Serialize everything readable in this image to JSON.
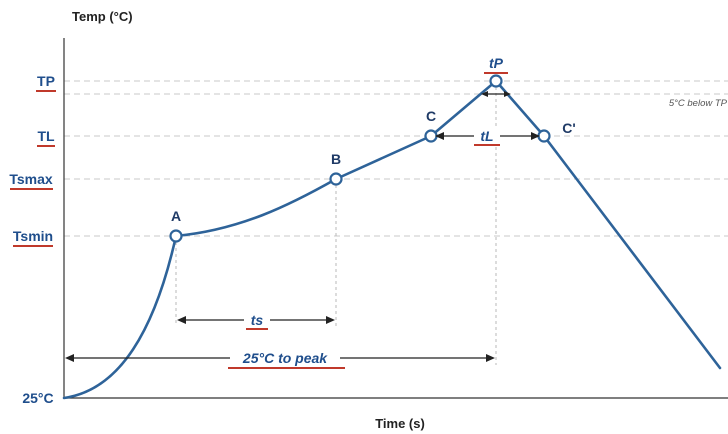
{
  "axes": {
    "y_title": "Temp (°C)",
    "x_title": "Time (s)"
  },
  "levels": {
    "tp": "TP",
    "tl": "TL",
    "tsmax": "Tsmax",
    "tsmin": "Tsmin",
    "start": "25°C"
  },
  "points": {
    "a": "A",
    "b": "B",
    "c": "C",
    "c_prime": "C'"
  },
  "spans": {
    "ts": "ts",
    "tl": "tL",
    "tp": "tP",
    "to_peak": "25°C to peak"
  },
  "note": "5°C below TP",
  "colors": {
    "curve": "#2e6399",
    "label": "#1f4e8c",
    "underline": "#c0392b"
  }
}
